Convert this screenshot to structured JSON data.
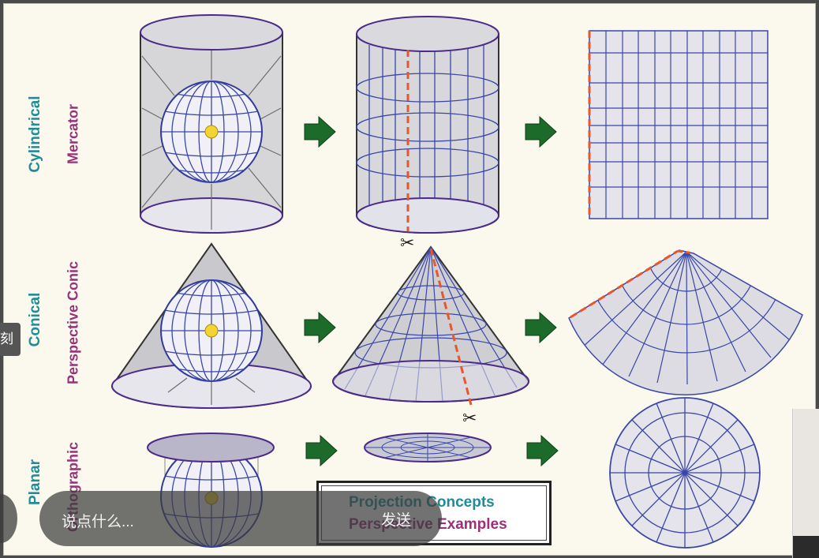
{
  "rows": [
    {
      "projection": "Cylindrical",
      "example": "Mercator"
    },
    {
      "projection": "Conical",
      "example": "Perspective Conic"
    },
    {
      "projection": "Planar",
      "example": "Orthographic"
    }
  ],
  "legend": {
    "line1": "Projection Concepts",
    "line2": "Perspective Examples"
  },
  "left_tab_glyph": "刻",
  "chat": {
    "placeholder": "说点什么...",
    "send_label": "发送"
  },
  "colors": {
    "background": "#fbf9ee",
    "primary_label": "#1f8c98",
    "secondary_label": "#9a2f7a",
    "grid_line": "#3a46a8",
    "surface_fill": "#d8d8dc",
    "cut_line": "#e8572a",
    "arrow": "#1d6b2a"
  }
}
